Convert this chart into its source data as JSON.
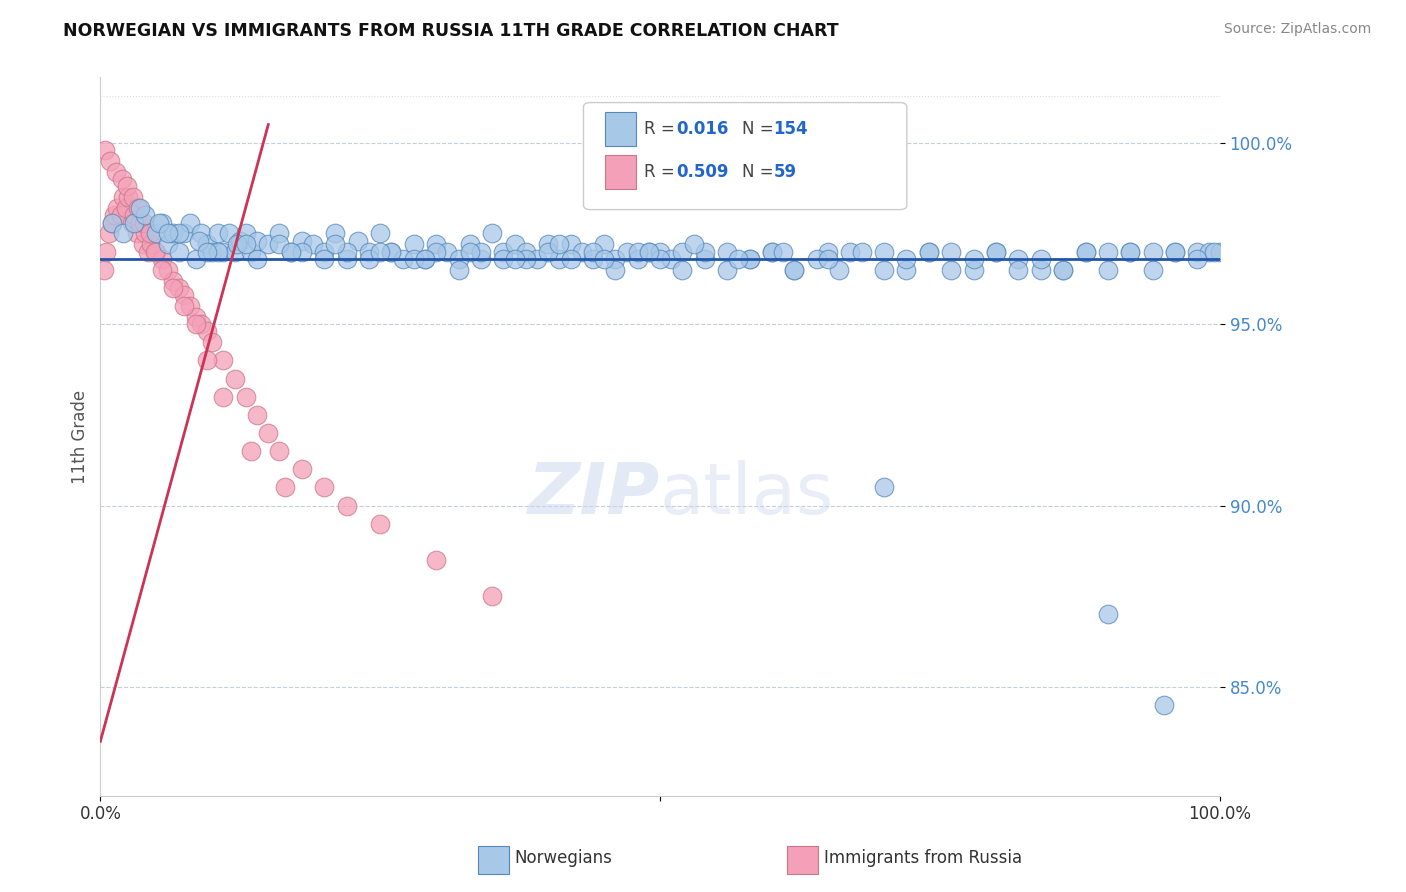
{
  "title": "NORWEGIAN VS IMMIGRANTS FROM RUSSIA 11TH GRADE CORRELATION CHART",
  "source": "Source: ZipAtlas.com",
  "ylabel": "11th Grade",
  "xlim": [
    0.0,
    100.0
  ],
  "ylim": [
    82.0,
    101.8
  ],
  "yticks": [
    85.0,
    90.0,
    95.0,
    100.0
  ],
  "legend_r_blue": "0.016",
  "legend_n_blue": "154",
  "legend_r_pink": "0.509",
  "legend_n_pink": "59",
  "blue_color": "#a8c8e8",
  "blue_edge": "#5588bb",
  "pink_color": "#f4a0b8",
  "pink_edge": "#cc7788",
  "trendline_blue_color": "#2255aa",
  "trendline_pink_color": "#cc3355",
  "watermark_zip": "ZIP",
  "watermark_atlas": "atlas",
  "blue_scatter_x": [
    1.0,
    2.0,
    3.0,
    4.0,
    5.0,
    5.5,
    6.0,
    6.5,
    7.0,
    7.5,
    8.0,
    8.5,
    9.0,
    9.5,
    10.0,
    10.5,
    11.0,
    11.5,
    12.0,
    12.5,
    13.0,
    13.5,
    14.0,
    15.0,
    16.0,
    17.0,
    18.0,
    19.0,
    20.0,
    21.0,
    22.0,
    23.0,
    24.0,
    25.0,
    26.0,
    27.0,
    28.0,
    29.0,
    30.0,
    31.0,
    32.0,
    33.0,
    34.0,
    35.0,
    36.0,
    37.0,
    38.0,
    39.0,
    40.0,
    41.0,
    42.0,
    43.0,
    44.0,
    45.0,
    46.0,
    47.0,
    48.0,
    49.0,
    50.0,
    51.0,
    52.0,
    54.0,
    56.0,
    58.0,
    60.0,
    62.0,
    65.0,
    67.0,
    70.0,
    72.0,
    74.0,
    76.0,
    78.0,
    80.0,
    82.0,
    84.0,
    86.0,
    88.0,
    90.0,
    92.0,
    94.0,
    96.0,
    98.0,
    99.0,
    100.0,
    3.5,
    5.2,
    7.0,
    8.8,
    10.5,
    12.2,
    14.0,
    16.0,
    18.0,
    20.0,
    22.0,
    24.0,
    26.0,
    28.0,
    30.0,
    32.0,
    34.0,
    36.0,
    38.0,
    40.0,
    42.0,
    44.0,
    46.0,
    48.0,
    50.0,
    52.0,
    54.0,
    56.0,
    58.0,
    60.0,
    62.0,
    64.0,
    66.0,
    68.0,
    70.0,
    72.0,
    74.0,
    76.0,
    78.0,
    80.0,
    82.0,
    84.0,
    86.0,
    88.0,
    90.0,
    92.0,
    94.0,
    96.0,
    98.0,
    99.5,
    6.0,
    9.5,
    13.0,
    17.0,
    21.0,
    25.0,
    29.0,
    33.0,
    37.0,
    41.0,
    45.0,
    49.0,
    53.0,
    57.0,
    61.0,
    65.0,
    70.0,
    90.0,
    95.0
  ],
  "blue_scatter_y": [
    97.8,
    97.5,
    97.8,
    98.0,
    97.5,
    97.8,
    97.2,
    97.5,
    97.0,
    97.5,
    97.8,
    96.8,
    97.5,
    97.2,
    97.0,
    97.5,
    97.0,
    97.5,
    97.0,
    97.3,
    97.5,
    97.0,
    97.3,
    97.2,
    97.5,
    97.0,
    97.3,
    97.2,
    97.0,
    97.5,
    96.8,
    97.3,
    97.0,
    97.5,
    97.0,
    96.8,
    97.2,
    96.8,
    97.2,
    97.0,
    96.8,
    97.2,
    96.8,
    97.5,
    97.0,
    97.2,
    97.0,
    96.8,
    97.2,
    96.8,
    97.2,
    97.0,
    96.8,
    97.2,
    96.8,
    97.0,
    96.8,
    97.0,
    97.0,
    96.8,
    97.0,
    96.8,
    97.0,
    96.8,
    97.0,
    96.5,
    97.0,
    97.0,
    97.0,
    96.5,
    97.0,
    97.0,
    96.5,
    97.0,
    96.8,
    96.5,
    96.5,
    97.0,
    97.0,
    97.0,
    97.0,
    97.0,
    97.0,
    97.0,
    97.0,
    98.2,
    97.8,
    97.5,
    97.3,
    97.0,
    97.2,
    96.8,
    97.2,
    97.0,
    96.8,
    97.0,
    96.8,
    97.0,
    96.8,
    97.0,
    96.5,
    97.0,
    96.8,
    96.8,
    97.0,
    96.8,
    97.0,
    96.5,
    97.0,
    96.8,
    96.5,
    97.0,
    96.5,
    96.8,
    97.0,
    96.5,
    96.8,
    96.5,
    97.0,
    96.5,
    96.8,
    97.0,
    96.5,
    96.8,
    97.0,
    96.5,
    96.8,
    96.5,
    97.0,
    96.5,
    97.0,
    96.5,
    97.0,
    96.8,
    97.0,
    97.5,
    97.0,
    97.2,
    97.0,
    97.2,
    97.0,
    96.8,
    97.0,
    96.8,
    97.2,
    96.8,
    97.0,
    97.2,
    96.8,
    97.0,
    96.8,
    90.5,
    87.0,
    84.5
  ],
  "pink_scatter_x": [
    0.3,
    0.5,
    0.8,
    1.0,
    1.2,
    1.5,
    1.8,
    2.0,
    2.3,
    2.5,
    2.8,
    3.0,
    3.3,
    3.5,
    3.8,
    4.0,
    4.3,
    4.5,
    5.0,
    5.5,
    6.0,
    6.5,
    7.0,
    7.5,
    8.0,
    8.5,
    9.0,
    9.5,
    10.0,
    11.0,
    12.0,
    13.0,
    14.0,
    15.0,
    16.0,
    18.0,
    20.0,
    22.0,
    25.0,
    30.0,
    35.0,
    0.4,
    0.9,
    1.4,
    1.9,
    2.4,
    2.9,
    3.4,
    3.9,
    4.4,
    4.9,
    5.5,
    6.5,
    7.5,
    8.5,
    9.5,
    11.0,
    13.5,
    16.5
  ],
  "pink_scatter_y": [
    96.5,
    97.0,
    97.5,
    97.8,
    98.0,
    98.2,
    98.0,
    98.5,
    98.2,
    98.5,
    97.8,
    98.0,
    97.5,
    97.8,
    97.2,
    97.5,
    97.0,
    97.2,
    97.0,
    96.8,
    96.5,
    96.2,
    96.0,
    95.8,
    95.5,
    95.2,
    95.0,
    94.8,
    94.5,
    94.0,
    93.5,
    93.0,
    92.5,
    92.0,
    91.5,
    91.0,
    90.5,
    90.0,
    89.5,
    88.5,
    87.5,
    99.8,
    99.5,
    99.2,
    99.0,
    98.8,
    98.5,
    98.2,
    97.8,
    97.5,
    97.0,
    96.5,
    96.0,
    95.5,
    95.0,
    94.0,
    93.0,
    91.5,
    90.5
  ],
  "pink_trendline_x": [
    0.0,
    15.0
  ],
  "pink_trendline_y": [
    83.5,
    100.5
  ],
  "blue_trendline_y": 96.8
}
